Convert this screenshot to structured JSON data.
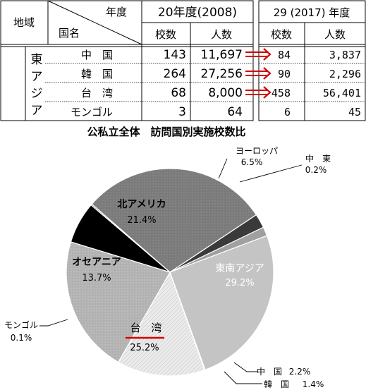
{
  "table": {
    "region_header": "地域",
    "year_header": "年度",
    "country_header": "国名",
    "period1": {
      "label": "20年度(2008)",
      "schools_label": "校数",
      "people_label": "人数"
    },
    "period2": {
      "label": "29 (2017) 年度",
      "schools_label": "校数",
      "people_label": "人数"
    },
    "region_name": "東アジア",
    "rows": [
      {
        "country": "中　国",
        "schools_2008": "143",
        "people_2008": "11,697",
        "schools_2017": "84",
        "people_2017": "3,837",
        "arrow": true
      },
      {
        "country": "韓　国",
        "schools_2008": "264",
        "people_2008": "27,256",
        "schools_2017": "90",
        "people_2017": "2,296",
        "arrow": true
      },
      {
        "country": "台　湾",
        "schools_2008": "68",
        "people_2008": "8,000",
        "schools_2017": "458",
        "people_2017": "56,401",
        "arrow": true
      },
      {
        "country": "モンゴル",
        "schools_2008": "3",
        "people_2008": "64",
        "schools_2017": "6",
        "people_2017": "45",
        "arrow": false
      }
    ]
  },
  "chart_data": {
    "type": "pie",
    "title": "公私立全体　訪問国別実施校数比",
    "slices": [
      {
        "name": "ヨーロッパ",
        "value": 6.5,
        "label": "6.5%",
        "color": "#000000"
      },
      {
        "name": "中　東",
        "value": 0.2,
        "label": "0.2%",
        "color": "#7a7a7a"
      },
      {
        "name": "東南アジア",
        "value": 29.2,
        "label": "29.2%",
        "color": "#7b7b7b"
      },
      {
        "name": "中　国",
        "value": 2.2,
        "label": "2.2%",
        "color": "#3a3a3a"
      },
      {
        "name": "韓　国",
        "value": 1.4,
        "label": "1.4%",
        "color": "#9a9a9a"
      },
      {
        "name": "台　湾",
        "value": 25.2,
        "label": "25.2%",
        "color": "#c4c4c4"
      },
      {
        "name": "モンゴル",
        "value": 0.1,
        "label": "0.1%",
        "color": "#a8a8a8"
      },
      {
        "name": "オセアニア",
        "value": 13.7,
        "label": "13.7%",
        "color": "#e4e4e4"
      },
      {
        "name": "北アメリカ",
        "value": 21.4,
        "label": "21.4%",
        "color": "#b2b2b2"
      }
    ],
    "highlight": "台　湾",
    "highlight_color": "#d40000",
    "arrow_color": "#d40000"
  }
}
